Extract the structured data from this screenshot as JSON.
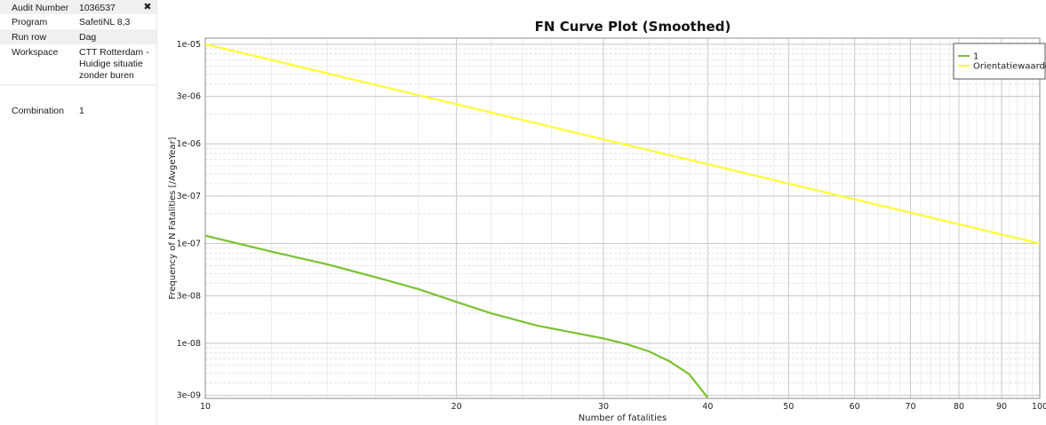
{
  "panel": {
    "rows": [
      {
        "key": "Audit Number",
        "value": "1036537"
      },
      {
        "key": "Program",
        "value": "SafetiNL 8,3"
      },
      {
        "key": "Run row",
        "value": "Dag"
      },
      {
        "key": "Workspace",
        "value": "CTT Rotterdam -\nHuidige situatie\nzonder buren"
      },
      {
        "key": "Combination",
        "value": "1"
      }
    ],
    "close_glyph": "✖"
  },
  "chart_data": {
    "type": "line",
    "title": "FN Curve Plot (Smoothed)",
    "xlabel": "Number of fatalities",
    "ylabel": "Frequency of N Fatalities [/AvgeYear]",
    "xscale": "log",
    "yscale": "log",
    "xlim": [
      10,
      100
    ],
    "ylim": [
      2.8e-09,
      1.15e-05
    ],
    "grid": true,
    "legend_position": "top-right",
    "x_ticks": [
      10,
      20,
      30,
      40,
      50,
      60,
      70,
      80,
      90,
      100
    ],
    "x_tick_labels": [
      "10",
      "20",
      "30",
      "40",
      "50",
      "60",
      "70",
      "80",
      "90",
      "100"
    ],
    "y_ticks": [
      3e-09,
      1e-08,
      3e-08,
      1e-07,
      3e-07,
      1e-06,
      3e-06,
      1e-05
    ],
    "y_tick_labels": [
      "3e-09",
      "1e-08",
      "3e-08",
      "1e-07",
      "3e-07",
      "1e-06",
      "3e-06",
      "1e-05"
    ],
    "series": [
      {
        "name": "1",
        "color": "#7ac231",
        "x": [
          10,
          12,
          14,
          16,
          18,
          20,
          22,
          25,
          28,
          30,
          32,
          34,
          36,
          38,
          40
        ],
        "y": [
          1.2e-07,
          8.3e-08,
          6.2e-08,
          4.6e-08,
          3.5e-08,
          2.6e-08,
          2e-08,
          1.5e-08,
          1.25e-08,
          1.12e-08,
          9.8e-09,
          8.3e-09,
          6.6e-09,
          4.9e-09,
          2.85e-09
        ]
      },
      {
        "name": "Orientatiewaarde",
        "color": "#ffff33",
        "x": [
          10,
          100
        ],
        "y": [
          1e-05,
          1e-07
        ]
      }
    ]
  }
}
